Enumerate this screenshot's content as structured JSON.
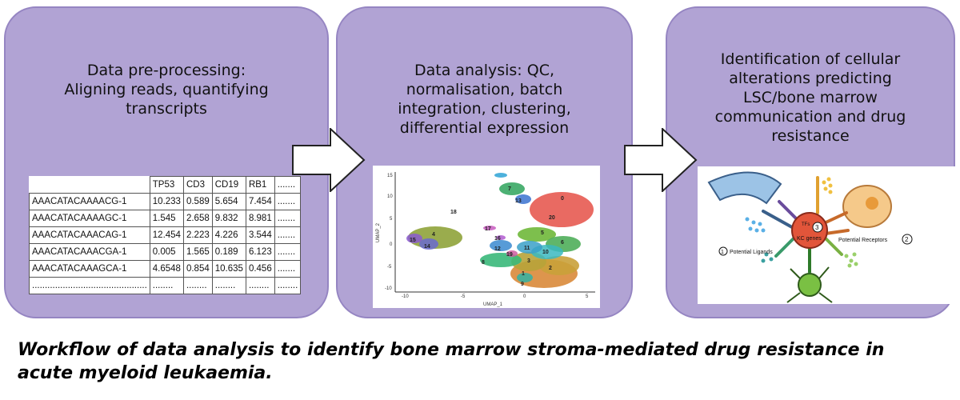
{
  "steps": [
    {
      "title_lines": [
        "Data pre-processing:",
        "Aligning reads, quantifying",
        "transcripts"
      ]
    },
    {
      "title_lines": [
        "Data analysis: QC,",
        "normalisation, batch",
        "integration, clustering,",
        "differential expression"
      ]
    },
    {
      "title_lines": [
        "Identification of cellular",
        "alterations predicting",
        "LSC/bone marrow",
        "communication and drug",
        "resistance"
      ]
    }
  ],
  "matrix": {
    "headers": [
      "TP53",
      "CD3",
      "CD19",
      "RB1",
      "......."
    ],
    "rows": [
      [
        "AAACATACAAAACG-1",
        "10.233",
        "0.589",
        "5.654",
        "7.454",
        "......."
      ],
      [
        "AAACATACAAAAGC-1",
        "1.545",
        "2.658",
        "9.832",
        "8.981",
        "......."
      ],
      [
        "AAACATACAAACAG-1",
        "12.454",
        "2.223",
        "4.226",
        "3.544",
        "......."
      ],
      [
        "AAACATACAAACGA-1",
        "0.005",
        "1.565",
        "0.189",
        "6.123",
        "......."
      ],
      [
        "AAACATACAAAGCA-1",
        "4.6548",
        "0.854",
        "10.635",
        "0.456",
        "......."
      ],
      [
        ".............................................",
        "........",
        "........",
        "........",
        "........",
        "........"
      ]
    ]
  },
  "umap": {
    "xlabel": "UMAP_1",
    "ylabel": "UMAP_2",
    "xticks": [
      "-10",
      "-5",
      "0",
      "5"
    ],
    "yticks": [
      "15",
      "10",
      "5",
      "0",
      "-5",
      "-10"
    ],
    "cluster_labels": [
      "0",
      "1",
      "2",
      "3",
      "4",
      "5",
      "6",
      "7",
      "8",
      "9",
      "10",
      "11",
      "12",
      "13",
      "14",
      "15",
      "16",
      "17",
      "18",
      "19",
      "20"
    ]
  },
  "network": {
    "center_lines": [
      "TFs",
      "KC genes"
    ],
    "center_number": "3",
    "ligands_number": "1",
    "ligands_label": "Potential Ligands",
    "receptors_number": "2",
    "receptors_label": "Potential Receptors"
  },
  "caption_lines": [
    "Workflow of data analysis to identify bone marrow stroma-mediated drug resistance in",
    "acute myeloid leukaemia."
  ],
  "colors": {
    "panel": "#b1a3d4",
    "panel_border": "#9585c2",
    "arrow_fill": "#ffffff",
    "arrow_stroke": "#222222"
  }
}
